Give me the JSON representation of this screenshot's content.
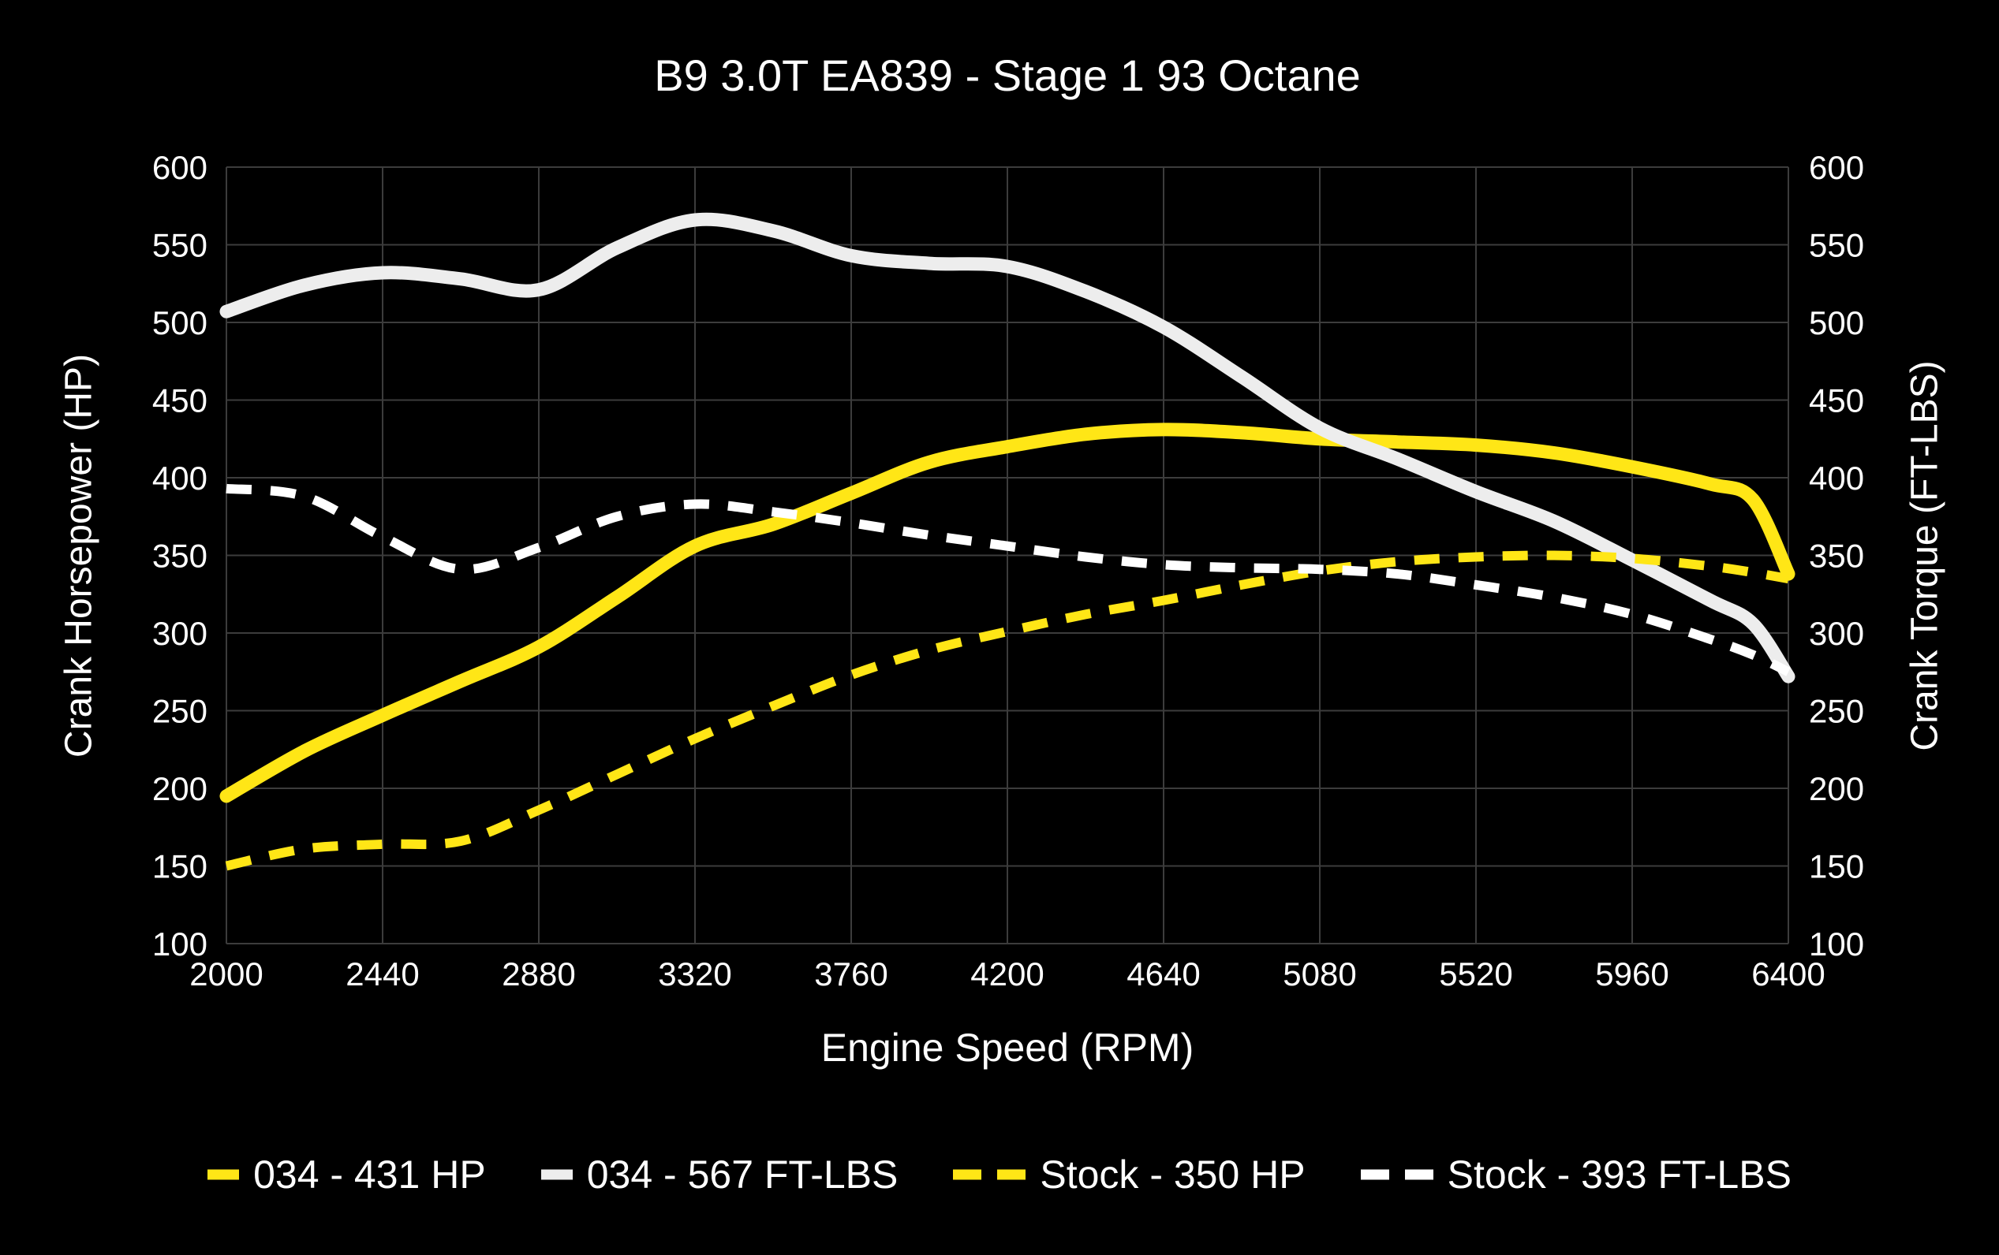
{
  "title": "B9 3.0T EA839 - Stage 1 93 Octane",
  "colors": {
    "background": "#000000",
    "grid": "#3c3c3c",
    "text": "#ffffff",
    "accent_yellow": "#ffe616",
    "solid_white_curve": "#ededed",
    "dashed_white_curve": "#ffffff"
  },
  "chart_data": {
    "type": "line",
    "title": "B9 3.0T EA839 - Stage 1 93 Octane",
    "xlabel": "Engine Speed (RPM)",
    "ylabel_left": "Crank Horsepower (HP)",
    "ylabel_right": "Crank Torque (FT-LBS)",
    "xlim": [
      2000,
      6400
    ],
    "ylim_left": [
      100,
      600
    ],
    "ylim_right": [
      100,
      600
    ],
    "xticks": [
      2000,
      2440,
      2880,
      3320,
      3760,
      4200,
      4640,
      5080,
      5520,
      5960,
      6400
    ],
    "yticks_left": [
      100,
      150,
      200,
      250,
      300,
      350,
      400,
      450,
      500,
      550,
      600
    ],
    "yticks_right": [
      100,
      150,
      200,
      250,
      300,
      350,
      400,
      450,
      500,
      550,
      600
    ],
    "grid": true,
    "legend_position": "bottom",
    "x_rpm": [
      2000,
      2220,
      2440,
      2660,
      2880,
      3100,
      3320,
      3540,
      3760,
      3980,
      4200,
      4420,
      4640,
      4860,
      5080,
      5300,
      5520,
      5740,
      5960,
      6180,
      6300,
      6400
    ],
    "series": [
      {
        "name": "034 - 431 HP",
        "style": "solid",
        "color": "#ffe616",
        "axis": "left",
        "values": [
          195,
          224,
          247,
          269,
          291,
          323,
          356,
          370,
          390,
          410,
          420,
          428,
          431,
          429,
          425,
          423,
          421,
          416,
          407,
          396,
          386,
          338
        ]
      },
      {
        "name": "034 - 567 FT-LBS",
        "style": "solid",
        "color": "#ededed",
        "axis": "right",
        "values": [
          507,
          524,
          532,
          528,
          521,
          548,
          566,
          559,
          543,
          538,
          536,
          520,
          497,
          465,
          432,
          412,
          391,
          372,
          347,
          321,
          306,
          272
        ]
      },
      {
        "name": "Stock - 350 HP",
        "style": "dashed",
        "color": "#ffe616",
        "axis": "left",
        "values": [
          150,
          161,
          164,
          166,
          186,
          209,
          232,
          253,
          273,
          289,
          301,
          312,
          321,
          331,
          340,
          346,
          349,
          350,
          348,
          343,
          339,
          335
        ]
      },
      {
        "name": "Stock - 393 FT-LBS",
        "style": "dashed",
        "color": "#ffffff",
        "axis": "right",
        "values": [
          393,
          388,
          362,
          341,
          355,
          375,
          383,
          378,
          371,
          363,
          356,
          349,
          344,
          342,
          341,
          338,
          331,
          323,
          312,
          296,
          286,
          275
        ]
      }
    ]
  }
}
